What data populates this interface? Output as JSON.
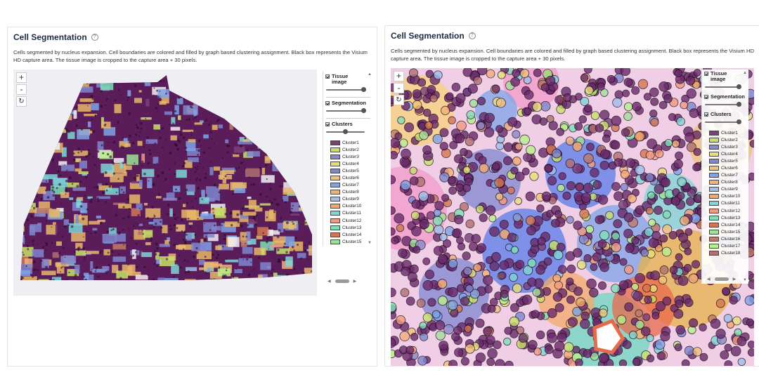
{
  "panels": [
    {
      "title": "Cell Segmentation",
      "description": "Cells segmented by nucleus expansion. Cell boundaries are colored and filled by graph based clustering assignment. Black box represents the Visium HD capture area. The tissue image is cropped to the capture area + 30 pixels.",
      "controls": {
        "zoom_in": "+",
        "zoom_out": "-",
        "reset": "↻"
      },
      "layers": [
        {
          "label": "Tissue image",
          "slider": 1.0
        },
        {
          "label": "Segmentation",
          "slider": 1.0
        },
        {
          "label": "Clusters",
          "slider": 0.5
        }
      ]
    },
    {
      "title": "Cell Segmentation",
      "description": "Cells segmented by nucleus expansion. Cell boundaries are colored and filled by graph based clustering assignment. Black box represents the Visium HD capture area. The tissue image is cropped to the capture area + 30 pixels.",
      "controls": {
        "zoom_in": "+",
        "zoom_out": "-",
        "reset": "↻"
      },
      "layers": [
        {
          "label": "Tissue image",
          "slider": 1.0
        },
        {
          "label": "Segmentation",
          "slider": 1.0
        },
        {
          "label": "Clusters",
          "slider": 1.0
        }
      ]
    }
  ],
  "clusters": [
    {
      "label": "Cluster1",
      "color": "#7b3f7a"
    },
    {
      "label": "Cluster2",
      "color": "#c8e06a"
    },
    {
      "label": "Cluster3",
      "color": "#8a88c8"
    },
    {
      "label": "Cluster4",
      "color": "#e7e07a"
    },
    {
      "label": "Cluster5",
      "color": "#7f86cf"
    },
    {
      "label": "Cluster6",
      "color": "#f0c27a"
    },
    {
      "label": "Cluster7",
      "color": "#7fa3e8"
    },
    {
      "label": "Cluster8",
      "color": "#f2b07a"
    },
    {
      "label": "Cluster9",
      "color": "#9ec0ea"
    },
    {
      "label": "Cluster10",
      "color": "#f5a86a"
    },
    {
      "label": "Cluster11",
      "color": "#7ed6d6"
    },
    {
      "label": "Cluster12",
      "color": "#f29a80"
    },
    {
      "label": "Cluster13",
      "color": "#7ee0b6"
    },
    {
      "label": "Cluster14",
      "color": "#d4764f"
    },
    {
      "label": "Cluster15",
      "color": "#a0e098"
    },
    {
      "label": "Cluster16",
      "color": "#c07a6a"
    },
    {
      "label": "Cluster17",
      "color": "#b8f08a"
    },
    {
      "label": "Cluster18",
      "color": "#b07070"
    }
  ],
  "colors": {
    "title": "#1c2b45",
    "purple_cells": "#5a1d5a",
    "tissue_pink": "#f0cfe6"
  }
}
